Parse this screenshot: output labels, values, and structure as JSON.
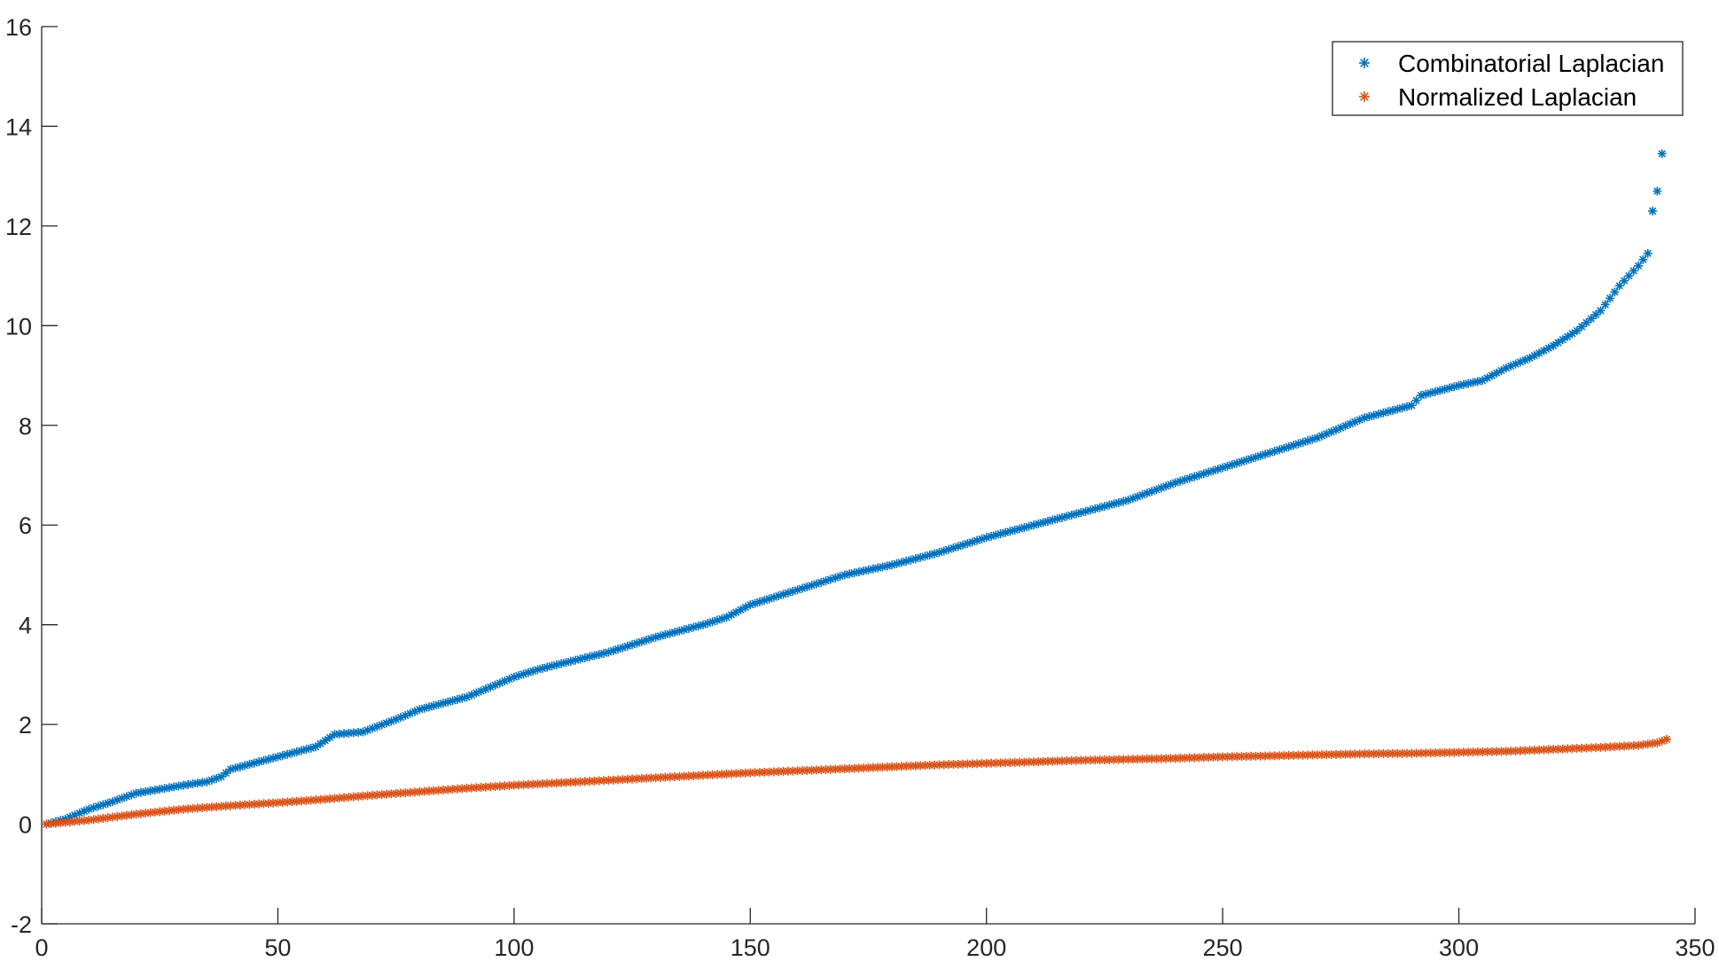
{
  "chart_data": {
    "type": "scatter",
    "marker": "asterisk",
    "xlim": [
      0,
      350
    ],
    "ylim": [
      -2,
      16
    ],
    "x_ticks": [
      0,
      50,
      100,
      150,
      200,
      250,
      300,
      350
    ],
    "y_ticks": [
      -2,
      0,
      2,
      4,
      6,
      8,
      10,
      12,
      14,
      16
    ],
    "grid": false,
    "legend_position": "top-right",
    "title": "",
    "xlabel": "",
    "ylabel": "",
    "n_points": 345,
    "series": [
      {
        "name": "Combinatorial Laplacian",
        "color": "#0072BD",
        "anchors": [
          [
            1,
            0
          ],
          [
            5,
            0.1
          ],
          [
            10,
            0.3
          ],
          [
            15,
            0.45
          ],
          [
            20,
            0.62
          ],
          [
            25,
            0.7
          ],
          [
            30,
            0.78
          ],
          [
            35,
            0.85
          ],
          [
            38,
            0.95
          ],
          [
            40,
            1.1
          ],
          [
            50,
            1.35
          ],
          [
            58,
            1.55
          ],
          [
            62,
            1.8
          ],
          [
            68,
            1.85
          ],
          [
            75,
            2.1
          ],
          [
            80,
            2.3
          ],
          [
            90,
            2.55
          ],
          [
            100,
            2.95
          ],
          [
            105,
            3.1
          ],
          [
            110,
            3.22
          ],
          [
            120,
            3.45
          ],
          [
            130,
            3.75
          ],
          [
            140,
            4.0
          ],
          [
            145,
            4.15
          ],
          [
            150,
            4.4
          ],
          [
            155,
            4.55
          ],
          [
            160,
            4.7
          ],
          [
            170,
            5.0
          ],
          [
            180,
            5.2
          ],
          [
            190,
            5.45
          ],
          [
            200,
            5.75
          ],
          [
            210,
            6.0
          ],
          [
            220,
            6.25
          ],
          [
            230,
            6.5
          ],
          [
            240,
            6.85
          ],
          [
            250,
            7.15
          ],
          [
            260,
            7.45
          ],
          [
            270,
            7.75
          ],
          [
            280,
            8.15
          ],
          [
            290,
            8.4
          ],
          [
            292,
            8.6
          ],
          [
            300,
            8.8
          ],
          [
            305,
            8.9
          ],
          [
            310,
            9.15
          ],
          [
            315,
            9.35
          ],
          [
            320,
            9.6
          ],
          [
            325,
            9.9
          ],
          [
            330,
            10.3
          ],
          [
            334,
            10.8
          ],
          [
            338,
            11.2
          ],
          [
            340,
            11.45
          ],
          [
            341,
            12.3
          ],
          [
            342,
            12.7
          ],
          [
            343,
            13.45
          ]
        ]
      },
      {
        "name": "Normalized Laplacian",
        "color": "#D95319",
        "anchors": [
          [
            1,
            0
          ],
          [
            10,
            0.08
          ],
          [
            20,
            0.2
          ],
          [
            30,
            0.3
          ],
          [
            40,
            0.37
          ],
          [
            50,
            0.43
          ],
          [
            60,
            0.5
          ],
          [
            70,
            0.58
          ],
          [
            80,
            0.65
          ],
          [
            90,
            0.72
          ],
          [
            100,
            0.78
          ],
          [
            110,
            0.83
          ],
          [
            120,
            0.88
          ],
          [
            130,
            0.93
          ],
          [
            140,
            0.98
          ],
          [
            150,
            1.03
          ],
          [
            160,
            1.07
          ],
          [
            170,
            1.11
          ],
          [
            180,
            1.15
          ],
          [
            190,
            1.19
          ],
          [
            200,
            1.22
          ],
          [
            210,
            1.25
          ],
          [
            220,
            1.28
          ],
          [
            230,
            1.3
          ],
          [
            240,
            1.32
          ],
          [
            250,
            1.35
          ],
          [
            260,
            1.37
          ],
          [
            270,
            1.39
          ],
          [
            280,
            1.41
          ],
          [
            290,
            1.42
          ],
          [
            300,
            1.44
          ],
          [
            310,
            1.46
          ],
          [
            320,
            1.5
          ],
          [
            330,
            1.54
          ],
          [
            338,
            1.58
          ],
          [
            342,
            1.63
          ],
          [
            344,
            1.7
          ]
        ]
      }
    ]
  }
}
